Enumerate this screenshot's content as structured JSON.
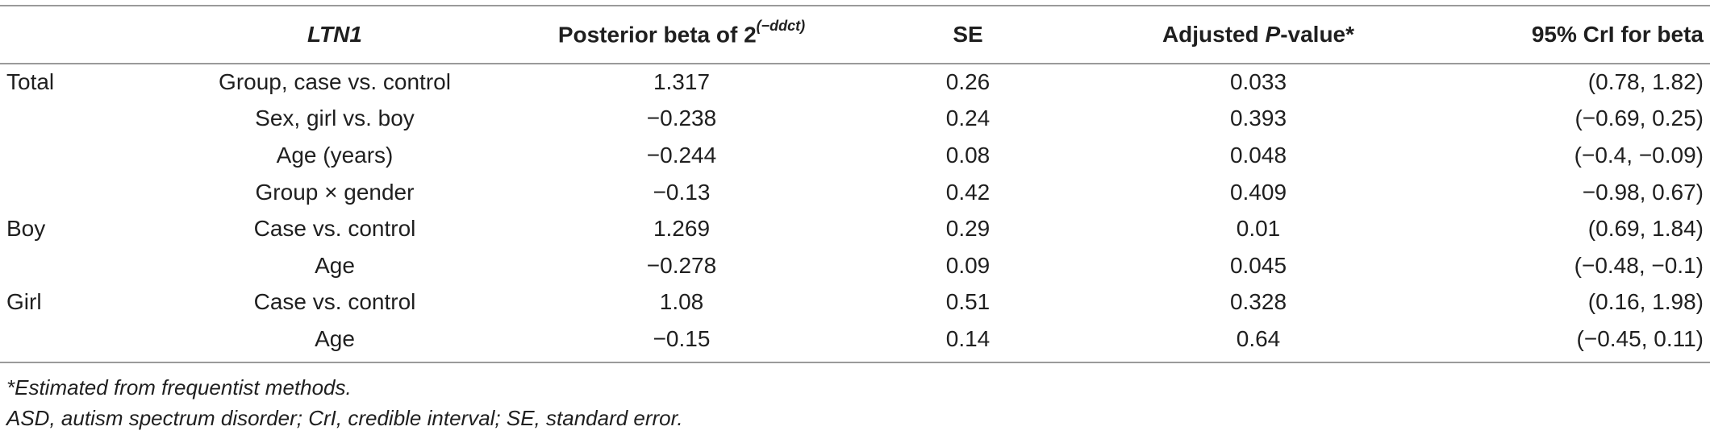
{
  "table": {
    "headers": {
      "col0": "",
      "col1": "LTN1",
      "col2_main": "Posterior beta of 2",
      "col2_sup": "(−ddct)",
      "col3": "SE",
      "col4_pre": "Adjusted ",
      "col4_ital": "P",
      "col4_post": "-value*",
      "col5": "95% CrI for beta"
    },
    "rows": [
      {
        "group": "Total",
        "variable": "Group, case vs. control",
        "beta": "1.317",
        "se": "0.26",
        "p": "0.033",
        "ci": "(0.78, 1.82)"
      },
      {
        "group": "",
        "variable": "Sex, girl vs. boy",
        "beta": "−0.238",
        "se": "0.24",
        "p": "0.393",
        "ci": "(−0.69, 0.25)"
      },
      {
        "group": "",
        "variable": "Age (years)",
        "beta": "−0.244",
        "se": "0.08",
        "p": "0.048",
        "ci": "(−0.4, −0.09)"
      },
      {
        "group": "",
        "variable": "Group × gender",
        "beta": "−0.13",
        "se": "0.42",
        "p": "0.409",
        "ci": "−0.98, 0.67)"
      },
      {
        "group": "Boy",
        "variable": "Case vs. control",
        "beta": "1.269",
        "se": "0.29",
        "p": "0.01",
        "ci": "(0.69, 1.84)"
      },
      {
        "group": "",
        "variable": "Age",
        "beta": "−0.278",
        "se": "0.09",
        "p": "0.045",
        "ci": "(−0.48, −0.1)"
      },
      {
        "group": "Girl",
        "variable": "Case vs. control",
        "beta": "1.08",
        "se": "0.51",
        "p": "0.328",
        "ci": "(0.16, 1.98)"
      },
      {
        "group": "",
        "variable": "Age",
        "beta": "−0.15",
        "se": "0.14",
        "p": "0.64",
        "ci": "(−0.45, 0.11)"
      }
    ]
  },
  "footnotes": {
    "line1": "*Estimated from frequentist methods.",
    "line2": "ASD, autism spectrum disorder; CrI, credible interval; SE, standard error."
  }
}
